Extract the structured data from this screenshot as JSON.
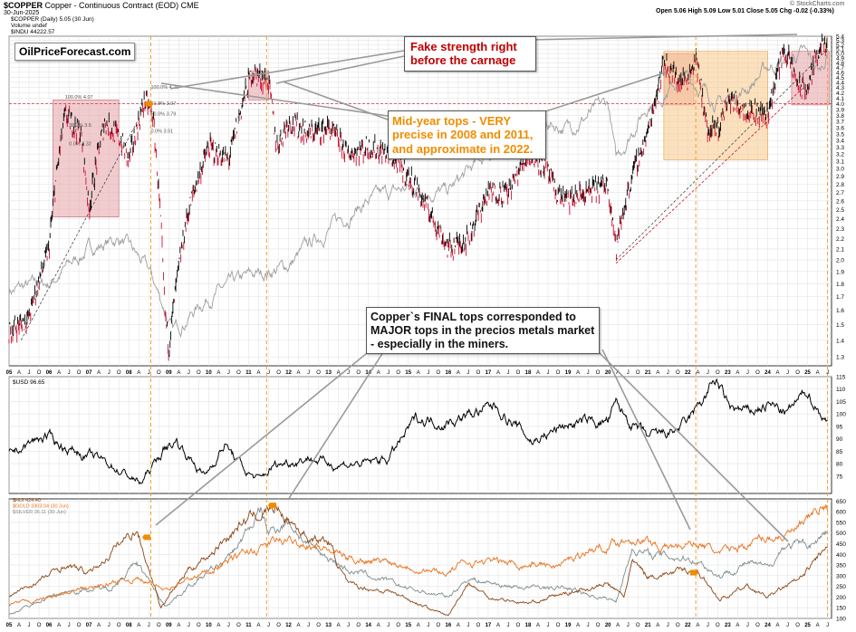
{
  "header": {
    "symbol": "$COPPER",
    "title": "Copper - Continuous Contract (EOD) CME",
    "date": "30-Jun-2025",
    "ohlc": "Open 5.06  High 5.09  Low 5.01  Close 5.05  Chg -0.02 (-0.33%)",
    "watermark": "© StockCharts.com",
    "legend_copper": "$COPPER (Daily) 5.05 (30 Jun)",
    "legend_volume": "Volume undef",
    "legend_indu": "$INDU 44222.57"
  },
  "brand": {
    "label": "OilPriceForecast.com"
  },
  "annotations": {
    "fake_strength": "Fake strength right before the carnage",
    "mid_year_tops": "Mid-year tops - VERY precise in 2008 and 2011, and approximate in 2022.",
    "final_tops": "Copper`s FINAL tops corresponded to MAJOR tops in the precios metals market - especially in the miners."
  },
  "fib_labels": [
    "100.0% 4.07",
    "100.0% 4.26",
    "61.8% 3.97",
    "50.0% 3.79",
    "38.2% 3.6",
    "0.0% 3.51",
    "0.0% 3.32"
  ],
  "colors": {
    "copper_up": "#000000",
    "copper_down": "#c8102e",
    "indu": "#9e9e9e",
    "usd": "#000000",
    "hui": "#8b4513",
    "gold": "#e8701a",
    "silver": "#7f8c8d",
    "highlight_red": "#e6a3a8",
    "highlight_orange": "#f9c98a",
    "vline": "#f0a030",
    "hline": "#cc3344"
  },
  "chart_data": [
    {
      "type": "line",
      "panel": "copper",
      "series": [
        {
          "name": "$COPPER (Daily) 5.05 (30 Jun)",
          "x": [
            2005.0,
            2005.5,
            2006.0,
            2006.4,
            2006.8,
            2007.0,
            2007.4,
            2007.8,
            2008.0,
            2008.4,
            2008.6,
            2008.9,
            2009.0,
            2009.5,
            2010.0,
            2010.5,
            2011.0,
            2011.1,
            2011.5,
            2011.7,
            2012.0,
            2012.5,
            2013.0,
            2013.5,
            2014.0,
            2014.5,
            2015.0,
            2015.5,
            2016.0,
            2016.5,
            2017.0,
            2017.5,
            2018.0,
            2018.4,
            2018.7,
            2019.0,
            2019.5,
            2020.0,
            2020.2,
            2020.6,
            2021.0,
            2021.4,
            2021.8,
            2022.0,
            2022.2,
            2022.5,
            2022.8,
            2023.0,
            2023.5,
            2024.0,
            2024.4,
            2024.8,
            2025.0,
            2025.3,
            2025.5
          ],
          "values": [
            1.45,
            1.55,
            2.1,
            3.8,
            3.5,
            2.5,
            3.7,
            3.4,
            3.1,
            4.07,
            3.8,
            1.6,
            1.35,
            2.5,
            3.3,
            3.1,
            4.4,
            4.6,
            4.4,
            3.3,
            3.7,
            3.5,
            3.6,
            3.2,
            3.3,
            3.2,
            2.9,
            2.5,
            2.1,
            2.2,
            2.7,
            2.7,
            3.2,
            3.05,
            2.7,
            2.6,
            2.7,
            2.8,
            2.1,
            2.9,
            3.5,
            4.8,
            4.4,
            4.5,
            4.9,
            3.5,
            3.6,
            4.1,
            3.9,
            3.8,
            5.1,
            4.3,
            4.25,
            5.2,
            5.05
          ]
        },
        {
          "name": "$INDU 44222.57",
          "x": [
            2005.0,
            2006.0,
            2007.0,
            2007.8,
            2008.5,
            2009.1,
            2010.0,
            2011.0,
            2012.0,
            2013.0,
            2014.0,
            2015.0,
            2016.0,
            2017.0,
            2018.0,
            2019.0,
            2020.0,
            2020.2,
            2021.0,
            2022.0,
            2022.8,
            2023.5,
            2024.0,
            2024.9,
            2025.3,
            2025.5
          ],
          "values": [
            1.75,
            1.8,
            2.1,
            2.2,
            1.9,
            1.45,
            1.7,
            1.85,
            1.95,
            2.3,
            2.6,
            2.75,
            2.7,
            3.2,
            3.7,
            3.6,
            4.0,
            3.1,
            4.0,
            4.5,
            4.0,
            4.3,
            4.7,
            5.0,
            4.6,
            5.0
          ]
        }
      ],
      "xlim": [
        2005,
        2025.6
      ],
      "ylim": [
        1.25,
        5.4
      ],
      "y_ticks": [
        1.3,
        1.4,
        1.5,
        1.6,
        1.7,
        1.8,
        1.9,
        2.0,
        2.1,
        2.2,
        2.3,
        2.4,
        2.5,
        2.6,
        2.7,
        2.8,
        2.9,
        3.0,
        3.1,
        3.2,
        3.3,
        3.4,
        3.5,
        3.6,
        3.7,
        3.8,
        3.9,
        4.0,
        4.1,
        4.2,
        4.3,
        4.4,
        4.5,
        4.6,
        4.7,
        4.8,
        4.9,
        5.0,
        5.1,
        5.2,
        5.3,
        5.4
      ],
      "scale": "log",
      "x_tick_labels": [
        "05",
        "A",
        "J",
        "O",
        "06",
        "A",
        "J",
        "O",
        "07",
        "A",
        "J",
        "O",
        "08",
        "A",
        "J",
        "O",
        "09",
        "A",
        "J",
        "O",
        "10",
        "A",
        "J",
        "O",
        "11",
        "A",
        "J",
        "O",
        "12",
        "A",
        "J",
        "O",
        "13",
        "A",
        "J",
        "O",
        "14",
        "A",
        "J",
        "O",
        "15",
        "A",
        "J",
        "O",
        "16",
        "A",
        "J",
        "O",
        "17",
        "A",
        "J",
        "O",
        "18",
        "A",
        "J",
        "O",
        "19",
        "A",
        "J",
        "O",
        "20",
        "A",
        "J",
        "O",
        "21",
        "A",
        "J",
        "O",
        "22",
        "A",
        "J",
        "O",
        "23",
        "A",
        "J",
        "O",
        "24",
        "A",
        "J",
        "O",
        "25",
        "A",
        "J"
      ],
      "reference_line": 4.0,
      "highlight_boxes": [
        {
          "x": [
            2006.1,
            2007.75
          ],
          "y": [
            2.42,
            4.07
          ],
          "color": "red"
        },
        {
          "x": [
            2011.0,
            2011.5
          ],
          "y": [
            4.07,
            4.63
          ],
          "color": "red"
        },
        {
          "x": [
            2021.4,
            2022.15
          ],
          "y": [
            3.98,
            5.0
          ],
          "color": "red"
        },
        {
          "x": [
            2024.6,
            2025.55
          ],
          "y": [
            3.98,
            5.05
          ],
          "color": "red"
        },
        {
          "x": [
            2021.4,
            2024.0
          ],
          "y": [
            3.12,
            5.05
          ],
          "color": "orange"
        }
      ],
      "vertical_lines": [
        2008.55,
        2011.45,
        2022.2
      ],
      "grid": true
    },
    {
      "type": "line",
      "panel": "usd",
      "series": [
        {
          "name": "$USD 96.65",
          "x": [
            2005.0,
            2005.9,
            2006.5,
            2007.5,
            2008.3,
            2008.9,
            2009.2,
            2009.9,
            2010.4,
            2010.9,
            2011.3,
            2011.6,
            2012.5,
            2013.0,
            2014.0,
            2014.5,
            2015.2,
            2016.0,
            2017.0,
            2017.2,
            2018.1,
            2019.0,
            2020.0,
            2020.2,
            2020.6,
            2021.0,
            2021.5,
            2022.0,
            2022.7,
            2023.0,
            2023.5,
            2024.0,
            2024.5,
            2025.0,
            2025.5
          ],
          "values": [
            84,
            91,
            86,
            80,
            72,
            86,
            89,
            75,
            88,
            77,
            73,
            79,
            83,
            80,
            80,
            82,
            98,
            97,
            102,
            103,
            89,
            96,
            97,
            103,
            96,
            90,
            92,
            96,
            114,
            103,
            100,
            104,
            100,
            109,
            96.65
          ]
        }
      ],
      "xlim": [
        2005,
        2025.6
      ],
      "ylim": [
        68,
        115
      ],
      "y_ticks": [
        75,
        80,
        85,
        90,
        95,
        100,
        105,
        110,
        115
      ],
      "grid": true
    },
    {
      "type": "line",
      "panel": "metals",
      "series": [
        {
          "name": "$HUI 424.40",
          "x": [
            2005.0,
            2006.0,
            2006.4,
            2007.0,
            2008.0,
            2008.2,
            2008.8,
            2009.5,
            2010.0,
            2010.9,
            2011.4,
            2011.7,
            2012.5,
            2013.0,
            2013.5,
            2014.5,
            2015.5,
            2016.0,
            2016.5,
            2017.0,
            2018.0,
            2019.0,
            2020.0,
            2020.4,
            2020.6,
            2021.0,
            2022.2,
            2022.8,
            2023.5,
            2024.0,
            2024.9,
            2025.3,
            2025.5
          ],
          "values": [
            200,
            300,
            350,
            310,
            490,
            520,
            155,
            330,
            400,
            560,
            600,
            620,
            480,
            460,
            250,
            230,
            150,
            110,
            270,
            200,
            170,
            220,
            260,
            200,
            360,
            300,
            330,
            190,
            250,
            200,
            290,
            400,
            424.4
          ]
        },
        {
          "name": "$GOLD 3303.04 (30 Jun)",
          "x": [
            2005.0,
            2006.0,
            2007.0,
            2008.2,
            2008.8,
            2009.5,
            2010.5,
            2011.7,
            2012.5,
            2013.5,
            2014.5,
            2015.9,
            2016.5,
            2017.5,
            2018.8,
            2019.5,
            2020.6,
            2021.5,
            2022.2,
            2022.8,
            2023.5,
            2024.0,
            2024.5,
            2025.0,
            2025.3,
            2025.5
          ],
          "values": [
            160,
            200,
            240,
            290,
            240,
            280,
            370,
            460,
            460,
            380,
            370,
            310,
            370,
            360,
            350,
            420,
            480,
            430,
            460,
            400,
            450,
            480,
            500,
            540,
            620,
            604
          ]
        },
        {
          "name": "$SILVER 36.11 (30 Jun)",
          "x": [
            2005.0,
            2006.0,
            2006.5,
            2007.5,
            2008.2,
            2008.9,
            2009.5,
            2010.5,
            2011.3,
            2011.5,
            2012.0,
            2012.5,
            2013.5,
            2015.0,
            2016.0,
            2016.5,
            2017.5,
            2019.0,
            2020.2,
            2020.6,
            2021.0,
            2022.2,
            2022.8,
            2023.5,
            2024.0,
            2024.4,
            2025.0,
            2025.5
          ],
          "values": [
            120,
            200,
            230,
            240,
            360,
            160,
            250,
            380,
            600,
            500,
            560,
            440,
            330,
            240,
            200,
            290,
            250,
            240,
            180,
            430,
            400,
            380,
            300,
            360,
            330,
            440,
            440,
            500
          ]
        }
      ],
      "xlim": [
        2005,
        2025.6
      ],
      "ylim": [
        100,
        660
      ],
      "y_ticks": [
        100,
        150,
        200,
        250,
        300,
        350,
        400,
        450,
        500,
        550,
        600,
        650
      ],
      "grid": true
    }
  ]
}
